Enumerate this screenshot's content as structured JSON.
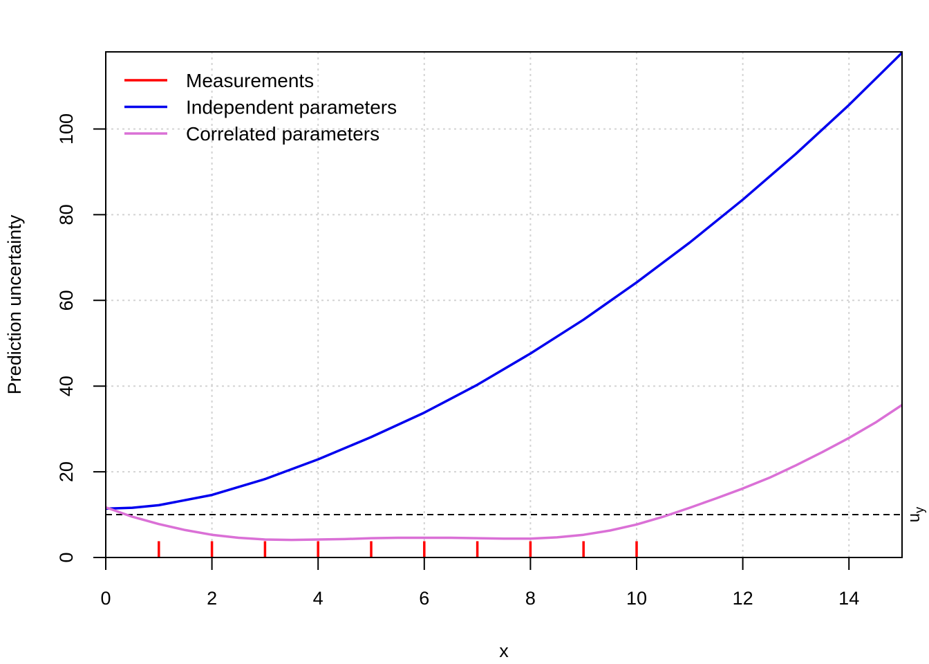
{
  "chart_data": {
    "type": "line",
    "title": "",
    "xlabel": "x",
    "ylabel": "Prediction uncertainty",
    "xlim": [
      0,
      15
    ],
    "ylim": [
      0,
      118
    ],
    "xticks": [
      0,
      2,
      4,
      6,
      8,
      10,
      12,
      14
    ],
    "yticks": [
      0,
      20,
      40,
      60,
      80,
      100
    ],
    "grid": true,
    "legend_position": "top-left",
    "legend": [
      "Measurements",
      "Independent parameters",
      "Correlated parameters"
    ],
    "colors": {
      "measurements": "#ff0000",
      "independent": "#0000ee",
      "correlated": "#da70d6",
      "grid": "#d3d3d3"
    },
    "reference_line": {
      "y": 10,
      "label": "u",
      "subscript": "y"
    },
    "measurements": {
      "name": "Measurements",
      "x": [
        1,
        2,
        3,
        4,
        5,
        6,
        7,
        8,
        9,
        10
      ],
      "height": 3.8
    },
    "series": [
      {
        "name": "Independent parameters",
        "x": [
          0,
          0.5,
          1,
          2,
          3,
          4,
          5,
          6,
          7,
          8,
          9,
          10,
          11,
          12,
          13,
          14,
          15
        ],
        "values": [
          11.4,
          11.6,
          12.2,
          14.6,
          18.3,
          22.9,
          28.1,
          33.8,
          40.3,
          47.6,
          55.5,
          64.2,
          73.5,
          83.5,
          94.2,
          105.6,
          117.8
        ]
      },
      {
        "name": "Correlated parameters",
        "x": [
          0,
          0.5,
          1,
          1.5,
          2,
          2.5,
          3,
          3.5,
          4,
          4.5,
          5,
          5.5,
          6,
          6.5,
          7,
          7.5,
          8,
          8.5,
          9,
          9.5,
          10,
          10.5,
          11,
          11.5,
          12,
          12.5,
          13,
          13.5,
          14,
          14.5,
          15
        ],
        "values": [
          11.7,
          9.5,
          7.8,
          6.4,
          5.3,
          4.6,
          4.2,
          4.1,
          4.2,
          4.3,
          4.5,
          4.6,
          4.6,
          4.6,
          4.5,
          4.4,
          4.4,
          4.7,
          5.3,
          6.3,
          7.7,
          9.5,
          11.6,
          13.8,
          16.1,
          18.6,
          21.5,
          24.6,
          27.9,
          31.5,
          35.6
        ]
      }
    ]
  }
}
